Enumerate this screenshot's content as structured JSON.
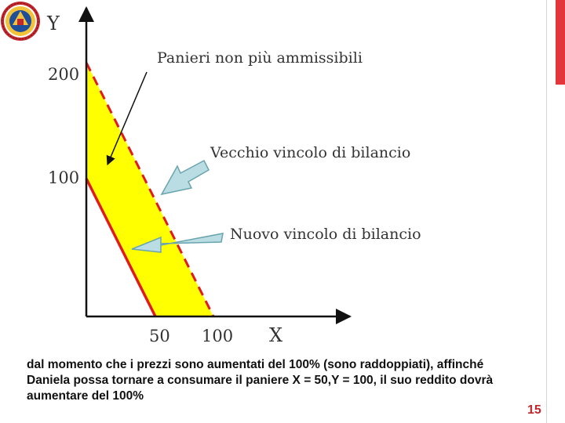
{
  "logo": {
    "icon": "university-seal-icon",
    "colors": {
      "ring": "#c1272d",
      "inner": "#f2c33a",
      "center": "#1f4e9a"
    }
  },
  "diagram": {
    "y_axis_label": "Y",
    "x_axis_label": "X",
    "y_ticks": [
      "200",
      "100"
    ],
    "x_ticks": [
      "50",
      "100"
    ],
    "annotations": {
      "infeasible": "Panieri non più ammissibili",
      "old_constraint": "Vecchio vincolo di bilancio",
      "new_constraint": "Nuovo vincolo di bilancio"
    },
    "old_constraint": {
      "x_intercept": 100,
      "y_intercept": 200,
      "style": "dashed"
    },
    "new_constraint": {
      "x_intercept": 50,
      "y_intercept": 100,
      "style": "solid"
    },
    "colors": {
      "fill": "#ffff00",
      "constraint": "#e01b1b",
      "arrow_fill": "#b9dde2",
      "arrow_stroke": "#6aa4ad"
    }
  },
  "caption": "dal momento che i prezzi sono aumentati del 100% (sono raddoppiati), affinché Daniela possa tornare a consumare il paniere X = 50,Y = 100, il suo reddito dovrà aumentare del 100%",
  "slide_number": "15"
}
